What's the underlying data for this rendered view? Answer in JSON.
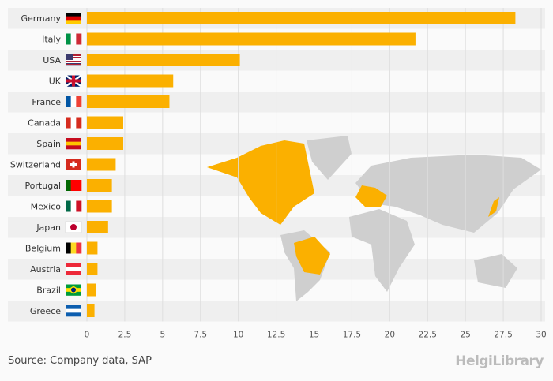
{
  "chart_data": {
    "type": "bar",
    "orientation": "horizontal",
    "categories": [
      "Germany",
      "Italy",
      "USA",
      "UK",
      "France",
      "Canada",
      "Spain",
      "Switzerland",
      "Portugal",
      "Mexico",
      "Japan",
      "Belgium",
      "Austria",
      "Brazil",
      "Greece"
    ],
    "values": [
      28.3,
      21.7,
      10.1,
      5.7,
      5.45,
      2.4,
      2.4,
      1.9,
      1.65,
      1.65,
      1.4,
      0.7,
      0.7,
      0.6,
      0.5
    ],
    "xlim": [
      0,
      30
    ],
    "xticks": [
      "0",
      "2.5",
      "5",
      "7.5",
      "10",
      "12.5",
      "15",
      "17.5",
      "20",
      "22.5",
      "25",
      "27.5",
      "30"
    ],
    "tick_values": [
      0,
      2.5,
      5,
      7.5,
      10,
      12.5,
      15,
      17.5,
      20,
      22.5,
      25,
      27.5,
      30
    ],
    "title": "",
    "xlabel": "",
    "ylabel": "",
    "grid": true
  },
  "colors": {
    "bar": "#fbb000",
    "map_highlight": "#fbb000",
    "map": "#cfcfcf",
    "band": "#efefef",
    "grid": "#dedede"
  },
  "footer": {
    "source": "Source: Company data, SAP",
    "logo": "HelgiLibrary"
  }
}
